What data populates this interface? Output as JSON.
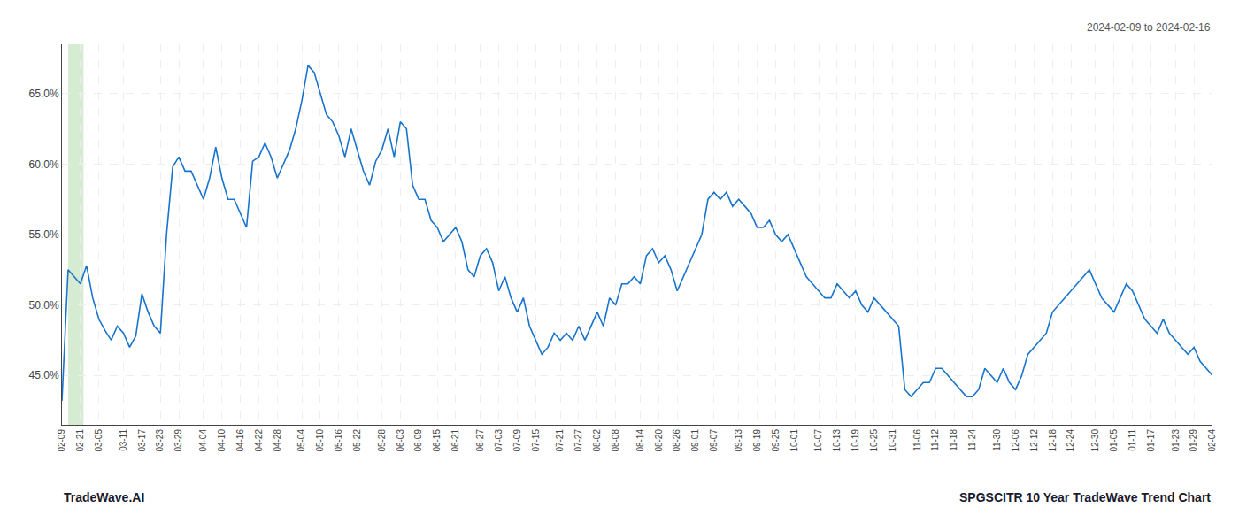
{
  "chart_data": {
    "type": "line",
    "subtitle": "2024-02-09 to 2024-02-16",
    "annotations": [
      "TradeWave.AI",
      "SPGSCITR 10 Year TradeWave Trend Chart"
    ],
    "color": "#1874CD",
    "grid": true,
    "highlight": {
      "from": 1.0,
      "to": 3.5,
      "color": "#d6ecd2"
    },
    "ylim": [
      41.5,
      68.5
    ],
    "yticks": [
      {
        "value": 45.0,
        "label": "45.0%"
      },
      {
        "value": 50.0,
        "label": "50.0%"
      },
      {
        "value": 55.0,
        "label": "55.0%"
      },
      {
        "value": 60.0,
        "label": "60.0%"
      },
      {
        "value": 65.0,
        "label": "65.0%"
      }
    ],
    "categories": [
      "02-09",
      null,
      null,
      "02-21",
      null,
      null,
      "03-05",
      null,
      null,
      null,
      "03-11",
      null,
      null,
      "03-17",
      null,
      null,
      "03-23",
      null,
      null,
      "03-29",
      null,
      null,
      null,
      "04-04",
      null,
      null,
      "04-10",
      null,
      null,
      "04-16",
      null,
      null,
      "04-22",
      null,
      null,
      "04-28",
      null,
      null,
      null,
      "05-04",
      null,
      null,
      "05-10",
      null,
      null,
      "05-16",
      null,
      null,
      "05-22",
      null,
      null,
      null,
      "05-28",
      null,
      null,
      "06-03",
      null,
      null,
      "06-09",
      null,
      null,
      "06-15",
      null,
      null,
      "06-21",
      null,
      null,
      null,
      "06-27",
      null,
      null,
      "07-03",
      null,
      null,
      "07-09",
      null,
      null,
      "07-15",
      null,
      null,
      null,
      "07-21",
      null,
      null,
      "07-27",
      null,
      null,
      "08-02",
      null,
      null,
      "08-08",
      null,
      null,
      null,
      "08-14",
      null,
      null,
      "08-20",
      null,
      null,
      "08-26",
      null,
      null,
      "09-01",
      null,
      null,
      "09-07",
      null,
      null,
      null,
      "09-13",
      null,
      null,
      "09-19",
      null,
      null,
      "09-25",
      null,
      null,
      "10-01",
      null,
      null,
      null,
      "10-07",
      null,
      null,
      "10-13",
      null,
      null,
      "10-19",
      null,
      null,
      "10-25",
      null,
      null,
      "10-31",
      null,
      null,
      null,
      "11-06",
      null,
      null,
      "11-12",
      null,
      null,
      "11-18",
      null,
      null,
      "11-24",
      null,
      null,
      null,
      "11-30",
      null,
      null,
      "12-06",
      null,
      null,
      "12-12",
      null,
      null,
      "12-18",
      null,
      null,
      "12-24",
      null,
      null,
      null,
      "12-30",
      null,
      null,
      "01-05",
      null,
      null,
      "01-11",
      null,
      null,
      "01-17",
      null,
      null,
      null,
      "01-23",
      null,
      null,
      "01-29",
      null,
      null,
      "02-04"
    ],
    "values": [
      43.2,
      52.5,
      52.0,
      51.5,
      52.8,
      50.5,
      49.0,
      48.2,
      47.5,
      48.5,
      48.0,
      47.0,
      47.8,
      50.8,
      49.5,
      48.5,
      48.0,
      55.0,
      59.8,
      60.5,
      59.5,
      59.5,
      58.5,
      57.5,
      59.0,
      61.2,
      59.0,
      57.5,
      57.5,
      56.5,
      55.5,
      60.2,
      60.5,
      61.5,
      60.5,
      59.0,
      60.0,
      61.0,
      62.5,
      64.5,
      67.0,
      66.5,
      65.0,
      63.5,
      63.0,
      62.0,
      60.5,
      62.5,
      61.0,
      59.5,
      58.5,
      60.2,
      61.0,
      62.5,
      60.5,
      63.0,
      62.5,
      58.5,
      57.5,
      57.5,
      56.0,
      55.5,
      54.5,
      55.0,
      55.5,
      54.5,
      52.5,
      52.0,
      53.5,
      54.0,
      53.0,
      51.0,
      52.0,
      50.5,
      49.5,
      50.5,
      48.5,
      47.5,
      46.5,
      47.0,
      48.0,
      47.5,
      48.0,
      47.5,
      48.5,
      47.5,
      48.5,
      49.5,
      48.5,
      50.5,
      50.0,
      51.5,
      51.5,
      52.0,
      51.5,
      53.5,
      54.0,
      53.0,
      53.5,
      52.5,
      51.0,
      52.0,
      53.0,
      54.0,
      55.0,
      57.5,
      58.0,
      57.5,
      58.0,
      57.0,
      57.5,
      57.0,
      56.5,
      55.5,
      55.5,
      56.0,
      55.0,
      54.5,
      55.0,
      54.0,
      53.0,
      52.0,
      51.5,
      51.0,
      50.5,
      50.5,
      51.5,
      51.0,
      50.5,
      51.0,
      50.0,
      49.5,
      50.5,
      50.0,
      49.5,
      49.0,
      48.5,
      44.0,
      43.5,
      44.0,
      44.5,
      44.5,
      45.5,
      45.5,
      45.0,
      44.5,
      44.0,
      43.5,
      43.5,
      44.0,
      45.5,
      45.0,
      44.5,
      45.5,
      44.5,
      44.0,
      45.0,
      46.5,
      47.0,
      47.5,
      48.0,
      49.5,
      50.0,
      50.5,
      51.0,
      51.5,
      52.0,
      52.5,
      51.5,
      50.5,
      50.0,
      49.5,
      50.5,
      51.5,
      51.0,
      50.0,
      49.0,
      48.5,
      48.0,
      49.0,
      48.0,
      47.5,
      47.0,
      46.5,
      47.0,
      46.0,
      45.5,
      45.0
    ]
  }
}
